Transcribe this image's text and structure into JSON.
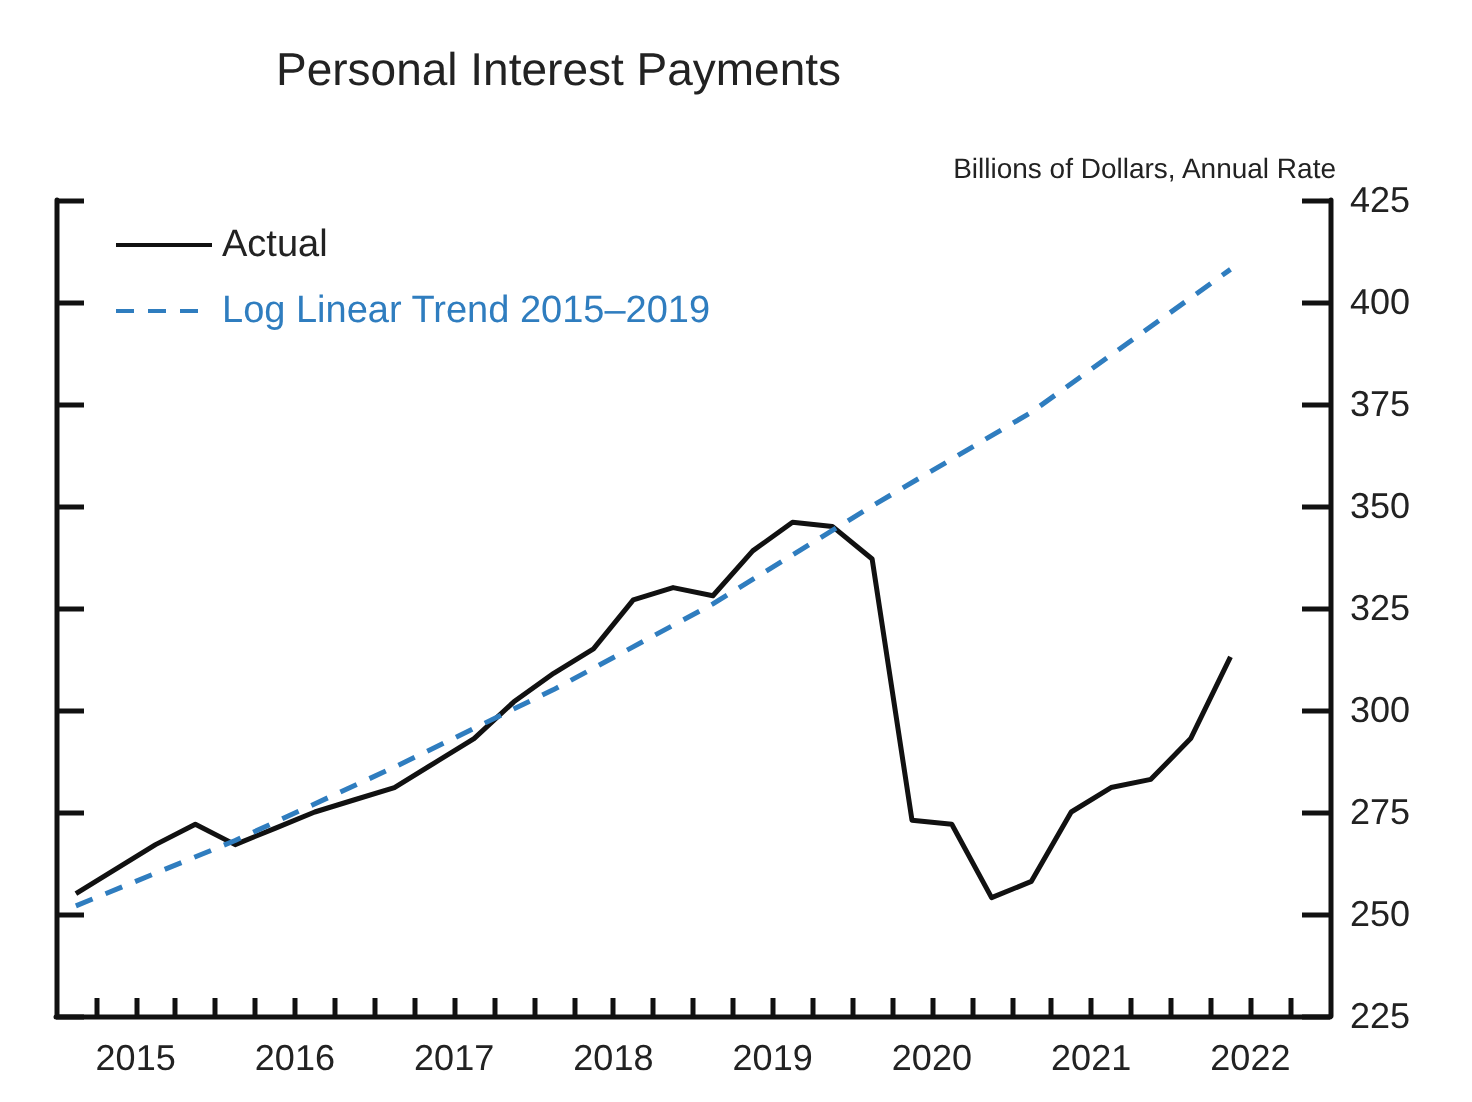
{
  "chart_data": {
    "type": "line",
    "title": "Personal Interest Payments",
    "ylabel": "Billions of Dollars, Annual Rate",
    "xlim": [
      2015,
      2023
    ],
    "xticks": [
      {
        "value": 2015.25,
        "label": null
      },
      {
        "value": 2015.5,
        "label": "2015"
      },
      {
        "value": 2015.75,
        "label": null
      },
      {
        "value": 2016,
        "label": null
      },
      {
        "value": 2016.25,
        "label": null
      },
      {
        "value": 2016.5,
        "label": "2016"
      },
      {
        "value": 2016.75,
        "label": null
      },
      {
        "value": 2017,
        "label": null
      },
      {
        "value": 2017.25,
        "label": null
      },
      {
        "value": 2017.5,
        "label": "2017"
      },
      {
        "value": 2017.75,
        "label": null
      },
      {
        "value": 2018,
        "label": null
      },
      {
        "value": 2018.25,
        "label": null
      },
      {
        "value": 2018.5,
        "label": "2018"
      },
      {
        "value": 2018.75,
        "label": null
      },
      {
        "value": 2019,
        "label": null
      },
      {
        "value": 2019.25,
        "label": null
      },
      {
        "value": 2019.5,
        "label": "2019"
      },
      {
        "value": 2019.75,
        "label": null
      },
      {
        "value": 2020,
        "label": null
      },
      {
        "value": 2020.25,
        "label": null
      },
      {
        "value": 2020.5,
        "label": "2020"
      },
      {
        "value": 2020.75,
        "label": null
      },
      {
        "value": 2021,
        "label": null
      },
      {
        "value": 2021.25,
        "label": null
      },
      {
        "value": 2021.5,
        "label": "2021"
      },
      {
        "value": 2021.75,
        "label": null
      },
      {
        "value": 2022,
        "label": null
      },
      {
        "value": 2022.25,
        "label": null
      },
      {
        "value": 2022.5,
        "label": "2022"
      },
      {
        "value": 2022.75,
        "label": null
      }
    ],
    "ylim": [
      225,
      425
    ],
    "yticks": [
      225,
      250,
      275,
      300,
      325,
      350,
      375,
      400,
      425
    ],
    "grid": false,
    "legend": "top left",
    "marker": "none",
    "series": [
      {
        "name": "Actual",
        "color": "#111111",
        "line_style": "solid",
        "x": [
          2015.125,
          2015.375,
          2015.625,
          2015.875,
          2016.125,
          2016.375,
          2016.625,
          2016.875,
          2017.125,
          2017.375,
          2017.625,
          2017.875,
          2018.125,
          2018.375,
          2018.625,
          2018.875,
          2019.125,
          2019.375,
          2019.625,
          2019.875,
          2020.125,
          2020.375,
          2020.625,
          2020.875,
          2021.125,
          2021.375,
          2021.625,
          2021.875,
          2022.125,
          2022.375
        ],
        "values": [
          255,
          261,
          267,
          272,
          267,
          271,
          275,
          278,
          281,
          287,
          293,
          302,
          309,
          315,
          327,
          330,
          328,
          339,
          346,
          345,
          337,
          273,
          272,
          254,
          258,
          275,
          281,
          283,
          293,
          313
        ]
      },
      {
        "name": "Log Linear Trend 2015–2019",
        "color": "#2f7dbf",
        "line_style": "dashed",
        "x": [
          2015.125,
          2016.125,
          2017.125,
          2018.125,
          2019.125,
          2020.125,
          2021.125,
          2022.375
        ],
        "values": [
          252,
          268,
          286,
          305,
          326,
          350,
          373,
          408
        ]
      }
    ]
  }
}
